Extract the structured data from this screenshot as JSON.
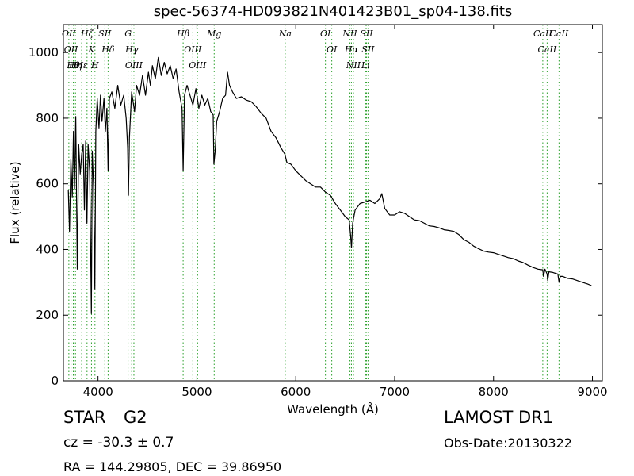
{
  "title": "spec-56374-HD093821N401423B01_sp04-138.fits",
  "info": {
    "object_type": "STAR",
    "subclass": "G2",
    "redshift": "cz = -30.3 ± 0.7",
    "survey": "LAMOST DR1",
    "obs_date": "Obs-Date:20130322",
    "coords": "RA = 144.29805, DEC = 39.86950"
  },
  "colors": {
    "spectrum": "#000000",
    "line_markers": "#2ca02c",
    "axes": "#000000"
  },
  "chart_data": {
    "type": "line",
    "title": "spec-56374-HD093821N401423B01_sp04-138.fits",
    "xlabel": "Wavelength (Å)",
    "ylabel": "Flux (relative)",
    "xlim": [
      3650,
      9100
    ],
    "ylim": [
      0,
      1085
    ],
    "x_ticks": [
      4000,
      5000,
      6000,
      7000,
      8000,
      9000
    ],
    "y_ticks": [
      0,
      200,
      400,
      600,
      800,
      1000
    ],
    "grid": false,
    "series": [
      {
        "points": [
          [
            3700,
            580
          ],
          [
            3712,
            455
          ],
          [
            3725,
            675
          ],
          [
            3740,
            560
          ],
          [
            3752,
            760
          ],
          [
            3762,
            585
          ],
          [
            3775,
            805
          ],
          [
            3790,
            340
          ],
          [
            3805,
            720
          ],
          [
            3820,
            630
          ],
          [
            3835,
            690
          ],
          [
            3850,
            720
          ],
          [
            3862,
            520
          ],
          [
            3875,
            730
          ],
          [
            3888,
            480
          ],
          [
            3900,
            720
          ],
          [
            3915,
            640
          ],
          [
            3925,
            420
          ],
          [
            3933,
            205
          ],
          [
            3942,
            700
          ],
          [
            3955,
            590
          ],
          [
            3968,
            280
          ],
          [
            3978,
            760
          ],
          [
            3992,
            860
          ],
          [
            4010,
            770
          ],
          [
            4025,
            870
          ],
          [
            4040,
            790
          ],
          [
            4060,
            860
          ],
          [
            4075,
            760
          ],
          [
            4090,
            830
          ],
          [
            4102,
            640
          ],
          [
            4115,
            860
          ],
          [
            4140,
            880
          ],
          [
            4170,
            830
          ],
          [
            4200,
            900
          ],
          [
            4230,
            840
          ],
          [
            4260,
            870
          ],
          [
            4285,
            800
          ],
          [
            4300,
            710
          ],
          [
            4308,
            565
          ],
          [
            4318,
            740
          ],
          [
            4340,
            880
          ],
          [
            4370,
            820
          ],
          [
            4390,
            900
          ],
          [
            4420,
            870
          ],
          [
            4450,
            930
          ],
          [
            4480,
            870
          ],
          [
            4510,
            940
          ],
          [
            4530,
            900
          ],
          [
            4550,
            960
          ],
          [
            4580,
            920
          ],
          [
            4610,
            985
          ],
          [
            4640,
            930
          ],
          [
            4670,
            970
          ],
          [
            4700,
            935
          ],
          [
            4730,
            960
          ],
          [
            4760,
            920
          ],
          [
            4790,
            950
          ],
          [
            4820,
            880
          ],
          [
            4850,
            830
          ],
          [
            4861,
            640
          ],
          [
            4875,
            870
          ],
          [
            4900,
            900
          ],
          [
            4930,
            870
          ],
          [
            4960,
            840
          ],
          [
            4990,
            890
          ],
          [
            5020,
            830
          ],
          [
            5050,
            870
          ],
          [
            5080,
            840
          ],
          [
            5110,
            860
          ],
          [
            5140,
            820
          ],
          [
            5165,
            810
          ],
          [
            5172,
            660
          ],
          [
            5185,
            700
          ],
          [
            5200,
            790
          ],
          [
            5230,
            820
          ],
          [
            5260,
            860
          ],
          [
            5290,
            870
          ],
          [
            5310,
            940
          ],
          [
            5330,
            900
          ],
          [
            5360,
            880
          ],
          [
            5400,
            860
          ],
          [
            5450,
            865
          ],
          [
            5500,
            855
          ],
          [
            5550,
            850
          ],
          [
            5600,
            835
          ],
          [
            5650,
            815
          ],
          [
            5700,
            800
          ],
          [
            5750,
            760
          ],
          [
            5800,
            740
          ],
          [
            5850,
            710
          ],
          [
            5890,
            690
          ],
          [
            5910,
            665
          ],
          [
            5950,
            660
          ],
          [
            6000,
            640
          ],
          [
            6050,
            625
          ],
          [
            6100,
            610
          ],
          [
            6150,
            600
          ],
          [
            6200,
            590
          ],
          [
            6250,
            590
          ],
          [
            6300,
            575
          ],
          [
            6350,
            565
          ],
          [
            6400,
            540
          ],
          [
            6450,
            520
          ],
          [
            6500,
            500
          ],
          [
            6540,
            490
          ],
          [
            6555,
            440
          ],
          [
            6563,
            405
          ],
          [
            6575,
            480
          ],
          [
            6600,
            520
          ],
          [
            6650,
            540
          ],
          [
            6700,
            545
          ],
          [
            6750,
            550
          ],
          [
            6800,
            540
          ],
          [
            6850,
            555
          ],
          [
            6870,
            570
          ],
          [
            6900,
            525
          ],
          [
            6950,
            505
          ],
          [
            7000,
            505
          ],
          [
            7050,
            515
          ],
          [
            7100,
            510
          ],
          [
            7150,
            500
          ],
          [
            7200,
            490
          ],
          [
            7250,
            488
          ],
          [
            7300,
            480
          ],
          [
            7350,
            472
          ],
          [
            7400,
            470
          ],
          [
            7450,
            466
          ],
          [
            7500,
            460
          ],
          [
            7550,
            458
          ],
          [
            7600,
            455
          ],
          [
            7650,
            445
          ],
          [
            7700,
            430
          ],
          [
            7750,
            422
          ],
          [
            7800,
            410
          ],
          [
            7850,
            402
          ],
          [
            7900,
            395
          ],
          [
            7950,
            392
          ],
          [
            8000,
            390
          ],
          [
            8050,
            385
          ],
          [
            8100,
            380
          ],
          [
            8150,
            375
          ],
          [
            8200,
            372
          ],
          [
            8250,
            365
          ],
          [
            8300,
            360
          ],
          [
            8350,
            352
          ],
          [
            8400,
            345
          ],
          [
            8450,
            340
          ],
          [
            8498,
            338
          ],
          [
            8505,
            318
          ],
          [
            8520,
            340
          ],
          [
            8542,
            325
          ],
          [
            8548,
            305
          ],
          [
            8560,
            332
          ],
          [
            8600,
            330
          ],
          [
            8650,
            325
          ],
          [
            8662,
            300
          ],
          [
            8675,
            318
          ],
          [
            8700,
            318
          ],
          [
            8750,
            312
          ],
          [
            8800,
            310
          ],
          [
            8850,
            305
          ],
          [
            8900,
            300
          ],
          [
            8950,
            295
          ],
          [
            8990,
            290
          ]
        ]
      }
    ],
    "line_markers": [
      {
        "x": 3705,
        "label": "OII"
      },
      {
        "x": 3727,
        "label": "OII"
      },
      {
        "x": 3750,
        "label": "Hθ"
      },
      {
        "x": 3772,
        "label": "Hη"
      },
      {
        "x": 3835,
        "label": "Hε"
      },
      {
        "x": 3889,
        "label": "Hζ"
      },
      {
        "x": 3934,
        "label": "K"
      },
      {
        "x": 3969,
        "label": "H"
      },
      {
        "x": 4069,
        "label": "SII"
      },
      {
        "x": 4102,
        "label": "Hδ"
      },
      {
        "x": 4304,
        "label": "G"
      },
      {
        "x": 4341,
        "label": "Hγ"
      },
      {
        "x": 4363,
        "label": "OIII"
      },
      {
        "x": 4861,
        "label": "Hβ"
      },
      {
        "x": 4959,
        "label": "OIII"
      },
      {
        "x": 5007,
        "label": "OIII"
      },
      {
        "x": 5175,
        "label": "Mg"
      },
      {
        "x": 5893,
        "label": "Na"
      },
      {
        "x": 6300,
        "label": "OI"
      },
      {
        "x": 6364,
        "label": "OI"
      },
      {
        "x": 6548,
        "label": "NII"
      },
      {
        "x": 6563,
        "label": "Hα"
      },
      {
        "x": 6583,
        "label": "NII"
      },
      {
        "x": 6707,
        "label": "Li"
      },
      {
        "x": 6716,
        "label": "SII"
      },
      {
        "x": 6731,
        "label": "SII"
      },
      {
        "x": 8498,
        "label": "CaII"
      },
      {
        "x": 8542,
        "label": "CaII"
      },
      {
        "x": 8662,
        "label": "CaII"
      }
    ]
  }
}
